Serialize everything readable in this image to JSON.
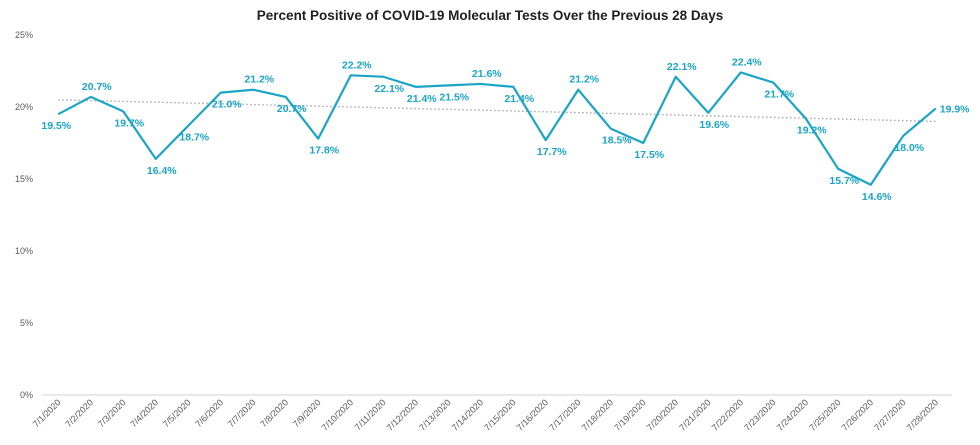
{
  "chart_data": {
    "type": "line",
    "title": "Percent Positive of COVID-19 Molecular Tests Over the Previous 28 Days",
    "xlabel": "",
    "ylabel": "",
    "ylim": [
      0,
      25
    ],
    "y_ticks": [
      0,
      5,
      10,
      15,
      20,
      25
    ],
    "y_tick_labels": [
      "0%",
      "5%",
      "10%",
      "15%",
      "20%",
      "25%"
    ],
    "grid": false,
    "colors": {
      "series": "#1aa5c6",
      "trend": "#a6a6a6"
    },
    "categories": [
      "7/1/2020",
      "7/2/2020",
      "7/3/2020",
      "7/4/2020",
      "7/5/2020",
      "7/6/2020",
      "7/7/2020",
      "7/8/2020",
      "7/9/2020",
      "7/10/2020",
      "7/11/2020",
      "7/12/2020",
      "7/13/2020",
      "7/14/2020",
      "7/15/2020",
      "7/16/2020",
      "7/17/2020",
      "7/18/2020",
      "7/19/2020",
      "7/20/2020",
      "7/21/2020",
      "7/22/2020",
      "7/23/2020",
      "7/24/2020",
      "7/25/2020",
      "7/26/2020",
      "7/27/2020",
      "7/28/2020"
    ],
    "series": [
      {
        "name": "Percent Positive",
        "values": [
          19.5,
          20.7,
          19.7,
          16.4,
          18.7,
          21.0,
          21.2,
          20.7,
          17.8,
          22.2,
          22.1,
          21.4,
          21.5,
          21.6,
          21.4,
          17.7,
          21.2,
          18.5,
          17.5,
          22.1,
          19.6,
          22.4,
          21.7,
          19.2,
          15.7,
          14.6,
          18.0,
          19.9
        ],
        "labels": [
          "19.5%",
          "20.7%",
          "19.7%",
          "16.4%",
          "18.7%",
          "21.0%",
          "21.2%",
          "20.7%",
          "17.8%",
          "22.2%",
          "22.1%",
          "21.4%",
          "21.5%",
          "21.6%",
          "21.4%",
          "17.7%",
          "21.2%",
          "18.5%",
          "17.5%",
          "22.1%",
          "19.6%",
          "22.4%",
          "21.7%",
          "19.2%",
          "15.7%",
          "14.6%",
          "18.0%",
          "19.9%"
        ]
      }
    ],
    "trendline": {
      "type": "linear",
      "style": "dotted",
      "start_value": 20.5,
      "end_value": 19.0
    }
  }
}
